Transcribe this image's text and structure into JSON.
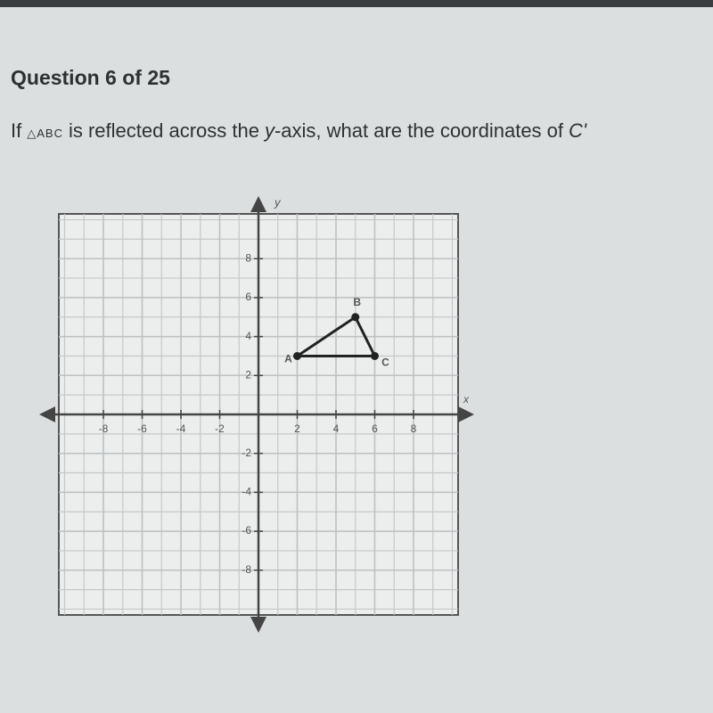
{
  "header": {
    "title": "Question 6 of 25"
  },
  "question": {
    "parts": [
      "If",
      "△ABC",
      "is reflected across the",
      "y",
      "-axis, what are the coordinates of",
      "C'"
    ]
  },
  "graph": {
    "x_label": "x",
    "y_label": "y",
    "xlim": [
      -10.3,
      10.3
    ],
    "ylim": [
      -10.3,
      10.3
    ],
    "xticks": [
      -8,
      -6,
      -4,
      -2,
      2,
      4,
      6,
      8
    ],
    "yticks": [
      -8,
      -6,
      -4,
      -2,
      2,
      4,
      6,
      8
    ],
    "grid": true,
    "points": [
      {
        "label": "A",
        "x": 2,
        "y": 3
      },
      {
        "label": "B",
        "x": 5,
        "y": 5
      },
      {
        "label": "C",
        "x": 6,
        "y": 3
      }
    ]
  }
}
